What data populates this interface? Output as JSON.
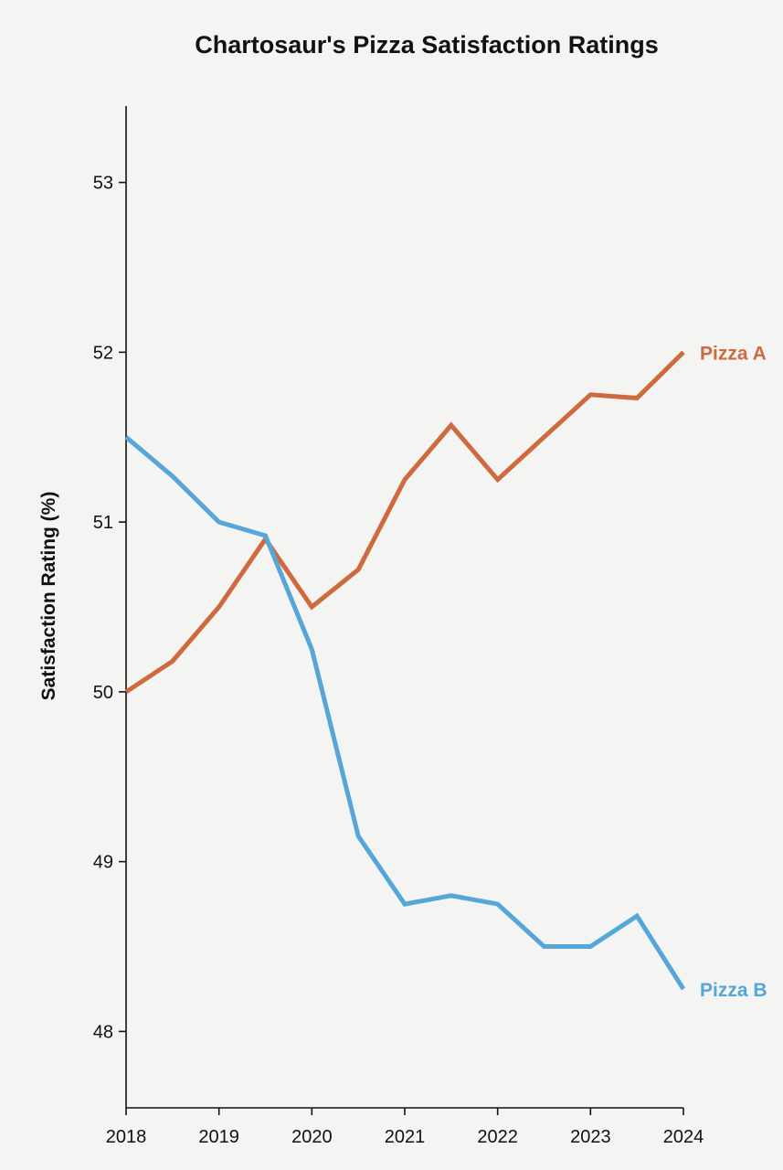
{
  "chart_data": {
    "type": "line",
    "title": "Chartosaur's Pizza Satisfaction Ratings",
    "ylabel": "Satisfaction Rating (%)",
    "xlabel": "",
    "x": [
      2018,
      2018.5,
      2019,
      2019.5,
      2020,
      2020.5,
      2021,
      2021.5,
      2022,
      2022.5,
      2023,
      2023.5,
      2024
    ],
    "x_ticks": [
      "2018",
      "2019",
      "2020",
      "2021",
      "2022",
      "2023",
      "2024"
    ],
    "y_ticks": [
      "48",
      "49",
      "50",
      "51",
      "52",
      "53"
    ],
    "xlim": [
      2018,
      2024
    ],
    "ylim": [
      47.55,
      53.45
    ],
    "grid": false,
    "legend": "inline-end-labels",
    "series": [
      {
        "name": "Pizza A",
        "color": "#cf6a3e",
        "values": [
          50.0,
          50.18,
          50.5,
          50.9,
          50.5,
          50.72,
          51.25,
          51.57,
          51.25,
          51.5,
          51.75,
          51.73,
          52.0
        ]
      },
      {
        "name": "Pizza B",
        "color": "#56a6da",
        "values": [
          51.5,
          51.27,
          51.0,
          50.92,
          50.25,
          49.15,
          48.75,
          48.8,
          48.75,
          48.5,
          48.5,
          48.68,
          48.25
        ]
      }
    ]
  }
}
